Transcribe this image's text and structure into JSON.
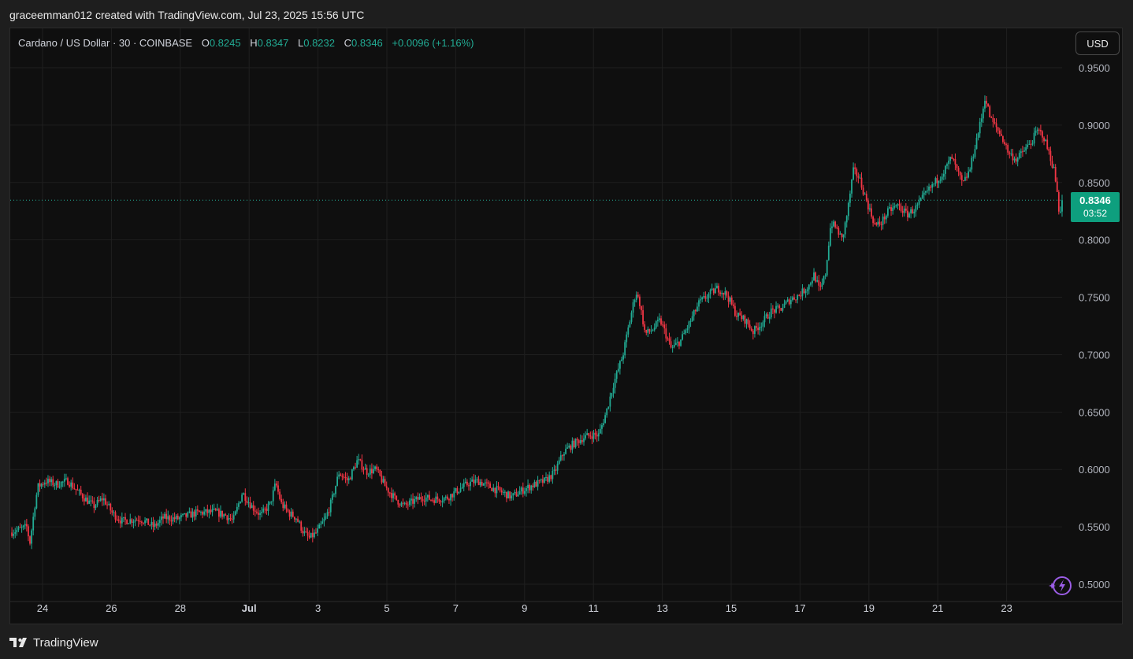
{
  "header": {
    "credit": "graceemman012 created with TradingView.com, Jul 23, 2025 15:56 UTC"
  },
  "legend": {
    "symbol": "Cardano / US Dollar · 30 · COINBASE",
    "o_label": "O",
    "o_value": "0.8245",
    "h_label": "H",
    "h_value": "0.8347",
    "l_label": "L",
    "l_value": "0.8232",
    "c_label": "C",
    "c_value": "0.8346",
    "change": "+0.0096 (+1.16%)"
  },
  "currency_button": "USD",
  "price_tag": {
    "price": "0.8346",
    "countdown": "03:52"
  },
  "footer": {
    "brand": "TradingView"
  },
  "colors": {
    "up": "#22ab94",
    "down": "#f23645",
    "background": "#0f0f0f",
    "grid": "#1f1f1f",
    "tag": "#0e9f7e"
  },
  "icons": {
    "logo": "tradingview-logo-icon",
    "bolt": "lightning-bolt-icon"
  },
  "chart_data": {
    "type": "candlestick",
    "y_axis": {
      "min": 0.5,
      "max": 0.95,
      "ticks": [
        "0.9500",
        "0.9000",
        "0.8500",
        "0.8000",
        "0.7500",
        "0.7000",
        "0.6500",
        "0.6000",
        "0.5500",
        "0.5000"
      ]
    },
    "x_axis": {
      "ticks": [
        "24",
        "26",
        "28",
        "Jul",
        "3",
        "5",
        "7",
        "9",
        "11",
        "13",
        "15",
        "17",
        "19",
        "21",
        "23"
      ]
    },
    "last_price": 0.8346,
    "price_path": [
      [
        0.0,
        0.545
      ],
      [
        0.018,
        0.55
      ],
      [
        0.021,
        0.535
      ],
      [
        0.027,
        0.572
      ],
      [
        0.03,
        0.585
      ],
      [
        0.038,
        0.59
      ],
      [
        0.05,
        0.587
      ],
      [
        0.062,
        0.59
      ],
      [
        0.07,
        0.583
      ],
      [
        0.08,
        0.575
      ],
      [
        0.09,
        0.568
      ],
      [
        0.1,
        0.575
      ],
      [
        0.11,
        0.562
      ],
      [
        0.12,
        0.555
      ],
      [
        0.14,
        0.557
      ],
      [
        0.155,
        0.55
      ],
      [
        0.165,
        0.558
      ],
      [
        0.18,
        0.557
      ],
      [
        0.2,
        0.562
      ],
      [
        0.22,
        0.563
      ],
      [
        0.232,
        0.56
      ],
      [
        0.24,
        0.555
      ],
      [
        0.25,
        0.58
      ],
      [
        0.26,
        0.568
      ],
      [
        0.27,
        0.56
      ],
      [
        0.28,
        0.57
      ],
      [
        0.286,
        0.588
      ],
      [
        0.292,
        0.57
      ],
      [
        0.3,
        0.562
      ],
      [
        0.308,
        0.558
      ],
      [
        0.316,
        0.545
      ],
      [
        0.322,
        0.54
      ],
      [
        0.33,
        0.545
      ],
      [
        0.34,
        0.558
      ],
      [
        0.346,
        0.572
      ],
      [
        0.354,
        0.597
      ],
      [
        0.364,
        0.59
      ],
      [
        0.374,
        0.608
      ],
      [
        0.384,
        0.598
      ],
      [
        0.394,
        0.6
      ],
      [
        0.404,
        0.585
      ],
      [
        0.414,
        0.575
      ],
      [
        0.424,
        0.568
      ],
      [
        0.434,
        0.572
      ],
      [
        0.444,
        0.576
      ],
      [
        0.454,
        0.574
      ],
      [
        0.47,
        0.575
      ],
      [
        0.484,
        0.583
      ],
      [
        0.494,
        0.588
      ],
      [
        0.504,
        0.59
      ],
      [
        0.516,
        0.585
      ],
      [
        0.53,
        0.58
      ],
      [
        0.54,
        0.576
      ],
      [
        0.552,
        0.582
      ],
      [
        0.562,
        0.586
      ],
      [
        0.576,
        0.59
      ],
      [
        0.586,
        0.597
      ],
      [
        0.596,
        0.615
      ],
      [
        0.606,
        0.622
      ],
      [
        0.618,
        0.628
      ],
      [
        0.626,
        0.63
      ],
      [
        0.634,
        0.63
      ],
      [
        0.642,
        0.65
      ],
      [
        0.65,
        0.675
      ],
      [
        0.66,
        0.7
      ],
      [
        0.67,
        0.74
      ],
      [
        0.674,
        0.755
      ],
      [
        0.678,
        0.745
      ],
      [
        0.684,
        0.718
      ],
      [
        0.692,
        0.722
      ],
      [
        0.7,
        0.73
      ],
      [
        0.706,
        0.718
      ],
      [
        0.712,
        0.705
      ],
      [
        0.722,
        0.712
      ],
      [
        0.732,
        0.728
      ],
      [
        0.742,
        0.745
      ],
      [
        0.752,
        0.752
      ],
      [
        0.762,
        0.758
      ],
      [
        0.772,
        0.752
      ],
      [
        0.782,
        0.735
      ],
      [
        0.792,
        0.73
      ],
      [
        0.8,
        0.72
      ],
      [
        0.81,
        0.728
      ],
      [
        0.82,
        0.738
      ],
      [
        0.83,
        0.74
      ],
      [
        0.84,
        0.748
      ],
      [
        0.85,
        0.752
      ],
      [
        0.86,
        0.76
      ],
      [
        0.866,
        0.77
      ],
      [
        0.872,
        0.755
      ],
      [
        0.878,
        0.77
      ],
      [
        0.884,
        0.815
      ],
      [
        0.89,
        0.81
      ],
      [
        0.896,
        0.8
      ],
      [
        0.902,
        0.825
      ],
      [
        0.908,
        0.86
      ],
      [
        0.914,
        0.855
      ],
      [
        0.92,
        0.84
      ],
      [
        0.926,
        0.825
      ],
      [
        0.932,
        0.812
      ],
      [
        0.938,
        0.815
      ],
      [
        0.946,
        0.825
      ],
      [
        0.956,
        0.83
      ],
      [
        0.966,
        0.822
      ],
      [
        0.976,
        0.828
      ],
      [
        0.986,
        0.84
      ],
      [
        0.996,
        0.85
      ],
      [
        1.006,
        0.86
      ],
      [
        1.014,
        0.872
      ],
      [
        1.02,
        0.86
      ],
      [
        1.026,
        0.848
      ],
      [
        1.034,
        0.862
      ],
      [
        1.04,
        0.885
      ],
      [
        1.046,
        0.905
      ],
      [
        1.05,
        0.925
      ],
      [
        1.056,
        0.905
      ],
      [
        1.062,
        0.898
      ],
      [
        1.068,
        0.89
      ],
      [
        1.076,
        0.875
      ],
      [
        1.084,
        0.87
      ],
      [
        1.092,
        0.878
      ],
      [
        1.1,
        0.885
      ],
      [
        1.106,
        0.895
      ],
      [
        1.112,
        0.892
      ],
      [
        1.118,
        0.878
      ],
      [
        1.124,
        0.862
      ],
      [
        1.128,
        0.84
      ],
      [
        1.13,
        0.822
      ],
      [
        1.133,
        0.8346
      ]
    ]
  }
}
